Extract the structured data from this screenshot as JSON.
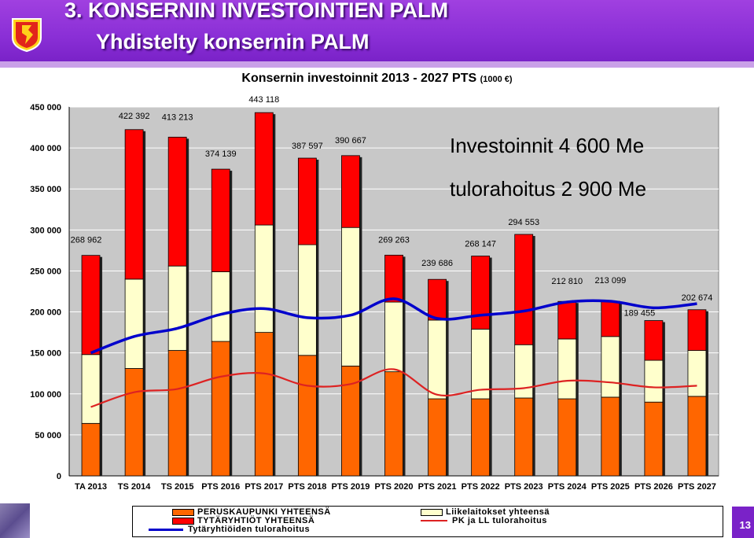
{
  "header": {
    "title_line1": "3. KONSERNIN INVESTOINTIEN PALM",
    "title_line2": "Yhdistelty konsernin PALM",
    "page_number": "13",
    "accent_color": "#8a2fd6"
  },
  "chart_data": {
    "type": "bar",
    "stacked": true,
    "title": "Konsernin investoinnit 2013 - 2027 PTS",
    "title_unit": "(1000 €)",
    "ylim": [
      0,
      450000
    ],
    "yticks": [
      "0",
      "50 000",
      "100 000",
      "150 000",
      "200 000",
      "250 000",
      "300 000",
      "350 000",
      "400 000",
      "450 000"
    ],
    "grid": true,
    "legend_position": "bottom",
    "categories": [
      "TA 2013",
      "TS 2014",
      "TS 2015",
      "PTS 2016",
      "PTS 2017",
      "PTS 2018",
      "PTS 2019",
      "PTS 2020",
      "PTS 2021",
      "PTS 2022",
      "PTS 2023",
      "PTS 2024",
      "PTS 2025",
      "PTS 2026",
      "PTS 2027"
    ],
    "series": [
      {
        "name": "PERUSKAUPUNKI YHTEENSÄ",
        "kind": "bar",
        "color": "#ff6600",
        "values": [
          64000,
          131000,
          153000,
          164000,
          175000,
          147000,
          134000,
          127000,
          94000,
          94000,
          95000,
          94000,
          96000,
          90000,
          97000
        ]
      },
      {
        "name": "Liikelaitokset yhteensä",
        "kind": "bar",
        "color": "#ffffcc",
        "values": [
          84000,
          109000,
          103000,
          85000,
          131000,
          135000,
          169000,
          85000,
          96000,
          85000,
          65000,
          73000,
          74000,
          51000,
          56000
        ]
      },
      {
        "name": "TYTÄRYHTIÖT YHTEENSÄ",
        "kind": "bar",
        "color": "#ff0000",
        "values": [
          120962,
          182392,
          157213,
          125139,
          137118,
          105597,
          87667,
          57263,
          49686,
          89147,
          134553,
          45810,
          43099,
          48455,
          49674
        ]
      },
      {
        "name": "Tytäryhtiöiden tulorahoitus",
        "kind": "line",
        "color": "#0000cc",
        "values": [
          150000,
          170000,
          180000,
          197000,
          204000,
          193000,
          196000,
          216000,
          192000,
          196000,
          201000,
          212000,
          213000,
          205000,
          210000
        ]
      },
      {
        "name": "PK ja LL tulorahoitus",
        "kind": "line",
        "color": "#dd2222",
        "values": [
          84000,
          102000,
          106000,
          121000,
          125000,
          110000,
          112000,
          130000,
          99000,
          105000,
          107000,
          116000,
          114000,
          108000,
          110000
        ]
      }
    ],
    "data_labels": [
      "268 962",
      "422 392",
      "413 213",
      "374 139",
      "443 118",
      "387 597",
      "390 667",
      "269 263",
      "239 686",
      "268 147",
      "294 553",
      "212 810",
      "213 099",
      "189 455",
      "202 674"
    ],
    "annotations": [
      "Investoinnit 4 600 Me",
      "tulorahoitus 2 900 Me"
    ]
  }
}
